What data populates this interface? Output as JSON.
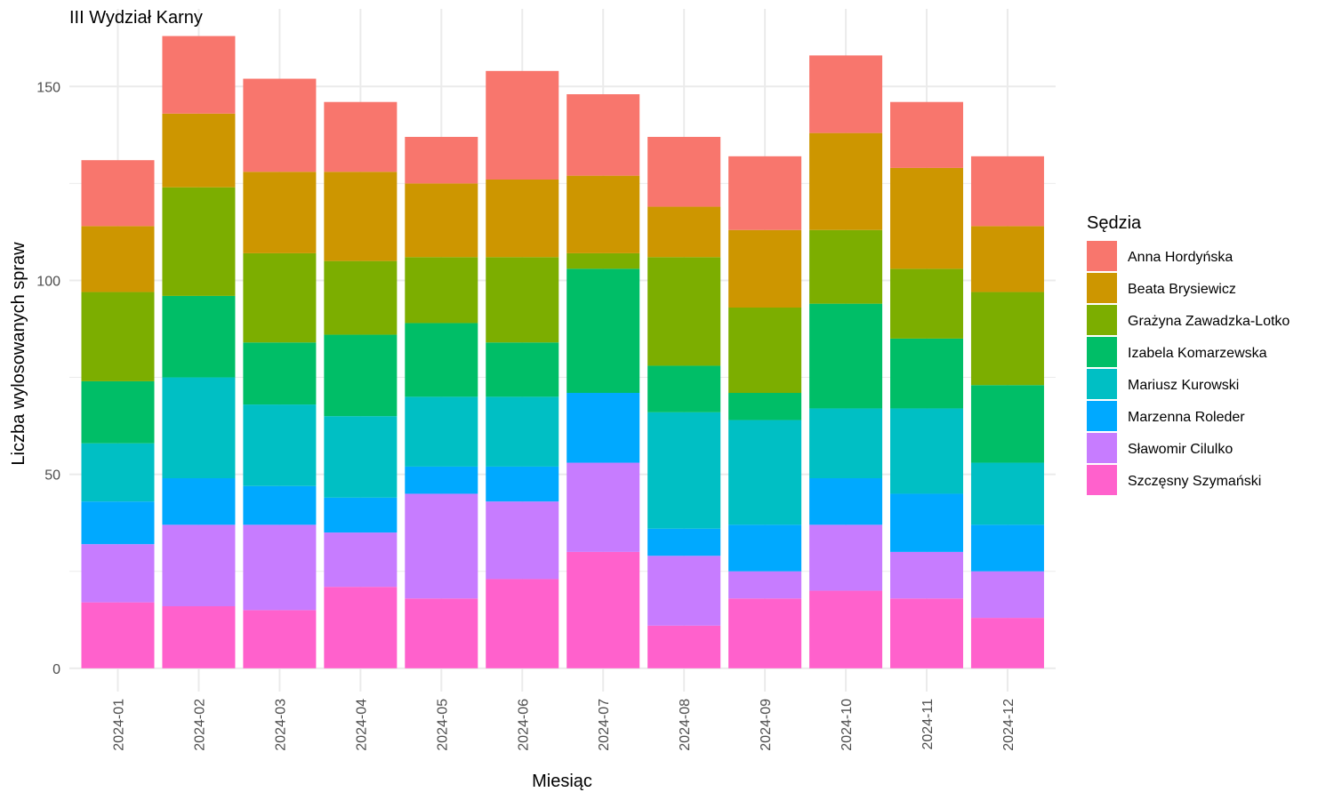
{
  "chart_data": {
    "type": "bar",
    "stacked": true,
    "title": "III Wydział Karny",
    "xlabel": "Miesiąc",
    "ylabel": "Liczba wylosowanych spraw",
    "ylim": [
      -6,
      170
    ],
    "y_ticks": [
      0,
      50,
      100,
      150
    ],
    "grid": true,
    "legend_title": "Sędzia",
    "legend_position": "right",
    "categories": [
      "2024-01",
      "2024-02",
      "2024-03",
      "2024-04",
      "2024-05",
      "2024-06",
      "2024-07",
      "2024-08",
      "2024-09",
      "2024-10",
      "2024-11",
      "2024-12"
    ],
    "series": [
      {
        "name": "Anna Hordyńska",
        "color": "#F8766D",
        "values": [
          17,
          20,
          24,
          18,
          12,
          28,
          21,
          18,
          19,
          20,
          17,
          18
        ]
      },
      {
        "name": "Beata Brysiewicz",
        "color": "#CD9600",
        "values": [
          17,
          19,
          21,
          23,
          19,
          20,
          20,
          13,
          20,
          25,
          26,
          17
        ]
      },
      {
        "name": "Grażyna Zawadzka-Lotko",
        "color": "#7CAE00",
        "values": [
          23,
          28,
          23,
          19,
          17,
          22,
          4,
          28,
          22,
          19,
          18,
          24
        ]
      },
      {
        "name": "Izabela Komarzewska",
        "color": "#00BE67",
        "values": [
          16,
          21,
          16,
          21,
          19,
          14,
          32,
          12,
          7,
          27,
          18,
          20
        ]
      },
      {
        "name": "Mariusz Kurowski",
        "color": "#00BFC4",
        "values": [
          15,
          26,
          21,
          21,
          18,
          18,
          0,
          30,
          27,
          18,
          22,
          16
        ]
      },
      {
        "name": "Marzenna Roleder",
        "color": "#00A9FF",
        "values": [
          11,
          12,
          10,
          9,
          7,
          9,
          18,
          7,
          12,
          12,
          15,
          12
        ]
      },
      {
        "name": "Sławomir Cilulko",
        "color": "#C77CFF",
        "values": [
          15,
          21,
          22,
          14,
          27,
          20,
          23,
          18,
          7,
          17,
          12,
          12
        ]
      },
      {
        "name": "Szczęsny Szymański",
        "color": "#FF61CC",
        "values": [
          17,
          16,
          15,
          21,
          18,
          23,
          30,
          11,
          18,
          20,
          18,
          13
        ]
      }
    ]
  }
}
